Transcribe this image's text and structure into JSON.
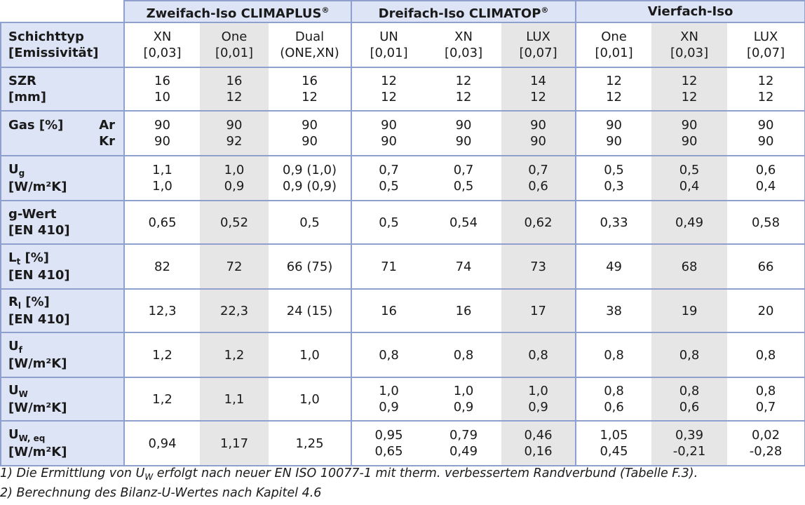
{
  "groups": [
    "Zweifach-Iso CLIMAPLUS",
    "Dreifach-Iso CLIMATOP",
    "Vierfach-Iso"
  ],
  "registered_mark": "®",
  "rows": {
    "schichttyp": {
      "label1": "Schichttyp",
      "label2": "[Emissivität]",
      "cells": [
        [
          "XN",
          "[0,03]"
        ],
        [
          "One",
          "[0,01]"
        ],
        [
          "Dual",
          "(ONE,XN)"
        ],
        [
          "UN",
          "[0,01]"
        ],
        [
          "XN",
          "[0,03]"
        ],
        [
          "LUX",
          "[0,07]"
        ],
        [
          "One",
          "[0,01]"
        ],
        [
          "XN",
          "[0,03]"
        ],
        [
          "LUX",
          "[0,07]"
        ]
      ]
    },
    "szr": {
      "label1": "SZR",
      "label2": "[mm]",
      "cells": [
        [
          "16",
          "10"
        ],
        [
          "16",
          "12"
        ],
        [
          "16",
          "12"
        ],
        [
          "12",
          "12"
        ],
        [
          "12",
          "12"
        ],
        [
          "14",
          "12"
        ],
        [
          "12",
          "12"
        ],
        [
          "12",
          "12"
        ],
        [
          "12",
          "12"
        ]
      ]
    },
    "gas": {
      "label1": "Gas [%]",
      "ar": "Ar",
      "kr": "Kr",
      "cells": [
        [
          "90",
          "90"
        ],
        [
          "90",
          "92"
        ],
        [
          "90",
          "90"
        ],
        [
          "90",
          "90"
        ],
        [
          "90",
          "90"
        ],
        [
          "90",
          "90"
        ],
        [
          "90",
          "90"
        ],
        [
          "90",
          "90"
        ],
        [
          "90",
          "90"
        ]
      ]
    },
    "ug": {
      "label_main": "U",
      "label_sub": "g",
      "label2": "[W/m²K]",
      "cells": [
        [
          "1,1",
          "1,0"
        ],
        [
          "1,0",
          "0,9"
        ],
        [
          "0,9 (1,0)",
          "0,9 (0,9)"
        ],
        [
          "0,7",
          "0,5"
        ],
        [
          "0,7",
          "0,5"
        ],
        [
          "0,7",
          "0,6"
        ],
        [
          "0,5",
          "0,3"
        ],
        [
          "0,5",
          "0,4"
        ],
        [
          "0,6",
          "0,4"
        ]
      ]
    },
    "gwert": {
      "label1": "g-Wert",
      "label2": "[EN 410]",
      "cells": [
        "0,65",
        "0,52",
        "0,5",
        "0,5",
        "0,54",
        "0,62",
        "0,33",
        "0,49",
        "0,58"
      ]
    },
    "lt": {
      "label_main": "L",
      "label_sub": "t",
      "label_rest": " [%]",
      "label2": "[EN 410]",
      "cells": [
        "82",
        "72",
        "66 (75)",
        "71",
        "74",
        "73",
        "49",
        "68",
        "66"
      ]
    },
    "rl": {
      "label_main": "R",
      "label_sub": "l",
      "label_rest": " [%]",
      "label2": "[EN 410]",
      "cells": [
        "12,3",
        "22,3",
        "24 (15)",
        "16",
        "16",
        "17",
        "38",
        "19",
        "20"
      ]
    },
    "uf": {
      "label_main": "U",
      "label_sub": "f",
      "label2": "[W/m²K]",
      "cells": [
        "1,2",
        "1,2",
        "1,0",
        "0,8",
        "0,8",
        "0,8",
        "0,8",
        "0,8",
        "0,8"
      ]
    },
    "uw": {
      "label_main": "U",
      "label_sub": "W",
      "label2": "[W/m²K]",
      "cells": [
        [
          "1,2",
          ""
        ],
        [
          "1,1",
          ""
        ],
        [
          "1,0",
          ""
        ],
        [
          "1,0",
          "0,9"
        ],
        [
          "1,0",
          "0,9"
        ],
        [
          "1,0",
          "0,9"
        ],
        [
          "0,8",
          "0,6"
        ],
        [
          "0,8",
          "0,6"
        ],
        [
          "0,8",
          "0,7"
        ]
      ]
    },
    "uweq": {
      "label_main": "U",
      "label_sub": "W, eq",
      "label2": "[W/m²K]",
      "cells": [
        [
          "0,94",
          ""
        ],
        [
          "1,17",
          ""
        ],
        [
          "1,25",
          ""
        ],
        [
          "0,95",
          "0,65"
        ],
        [
          "0,79",
          "0,49"
        ],
        [
          "0,46",
          "0,16"
        ],
        [
          "1,05",
          "0,45"
        ],
        [
          "0,39",
          "-0,21"
        ],
        [
          "0,02",
          "-0,28"
        ]
      ]
    }
  },
  "notes": {
    "n1_pre": "1) Die Ermittlung von U",
    "n1_sub": "W",
    "n1_post": " erfolgt nach neuer EN ISO 10077-1 mit therm. verbessertem Randverbund (Tabelle F.3).",
    "n2": "2) Berechnung des Bilanz-U-Wertes nach Kapitel 4.6"
  },
  "colors": {
    "border": "#8fa0cf",
    "label_bg": "#dde4f5",
    "shade_bg": "#e6e6e6"
  }
}
